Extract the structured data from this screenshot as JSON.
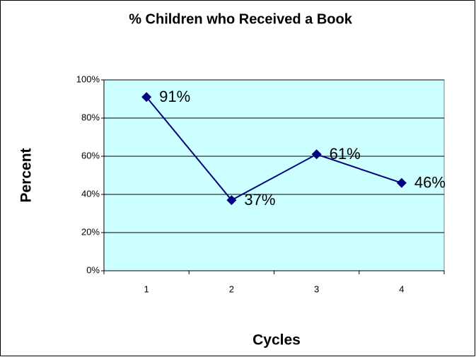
{
  "chart_data": {
    "type": "line",
    "title": "% Children who Received a Book",
    "x_label": "Cycles",
    "y_label": "Percent",
    "categories": [
      "1",
      "2",
      "3",
      "4"
    ],
    "values": [
      91,
      37,
      61,
      46
    ],
    "value_labels": [
      "91%",
      "37%",
      "61%",
      "46%"
    ],
    "color": "#000080",
    "ylim": [
      0,
      100
    ],
    "yticks": [
      {
        "value": 0,
        "label": "0%"
      },
      {
        "value": 20,
        "label": "20%"
      },
      {
        "value": 40,
        "label": "40%"
      },
      {
        "value": 60,
        "label": "60%"
      },
      {
        "value": 80,
        "label": "80%"
      },
      {
        "value": 100,
        "label": "100%"
      }
    ],
    "grid": true
  }
}
